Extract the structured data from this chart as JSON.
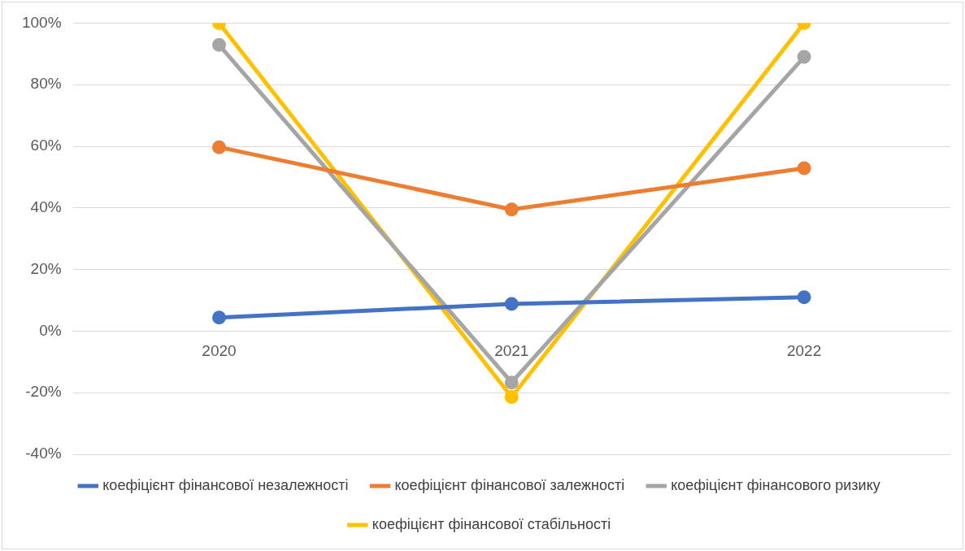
{
  "chart_data": {
    "type": "line",
    "categories": [
      "2020",
      "2021",
      "2022"
    ],
    "series": [
      {
        "name": "коефіцієнт фінансової незалежності",
        "color": "#4472c4",
        "values": [
          4.4,
          8.8,
          11
        ]
      },
      {
        "name": "коефіцієнт фінансової залежності",
        "color": "#ed7d31",
        "values": [
          59.7,
          39.5,
          52.9
        ]
      },
      {
        "name": "коефіцієнт фінансового ризику",
        "color": "#a5a5a5",
        "values": [
          92.9,
          -16.7,
          89
        ]
      },
      {
        "name": "коефіцієнт фінансової стабільності",
        "color": "#ffc000",
        "values": [
          100,
          -21.4,
          100
        ]
      }
    ],
    "ylim": [
      -40,
      100
    ],
    "yticks": [
      {
        "value": -40,
        "label": "-40%"
      },
      {
        "value": -20,
        "label": "-20%"
      },
      {
        "value": 0,
        "label": "0%"
      },
      {
        "value": 20,
        "label": "20%"
      },
      {
        "value": 40,
        "label": "40%"
      },
      {
        "value": 60,
        "label": "60%"
      },
      {
        "value": 80,
        "label": "80%"
      },
      {
        "value": 100,
        "label": "100%"
      }
    ],
    "grid": "y",
    "legend": "bottom",
    "marker": "circle",
    "line_style": "solid"
  }
}
